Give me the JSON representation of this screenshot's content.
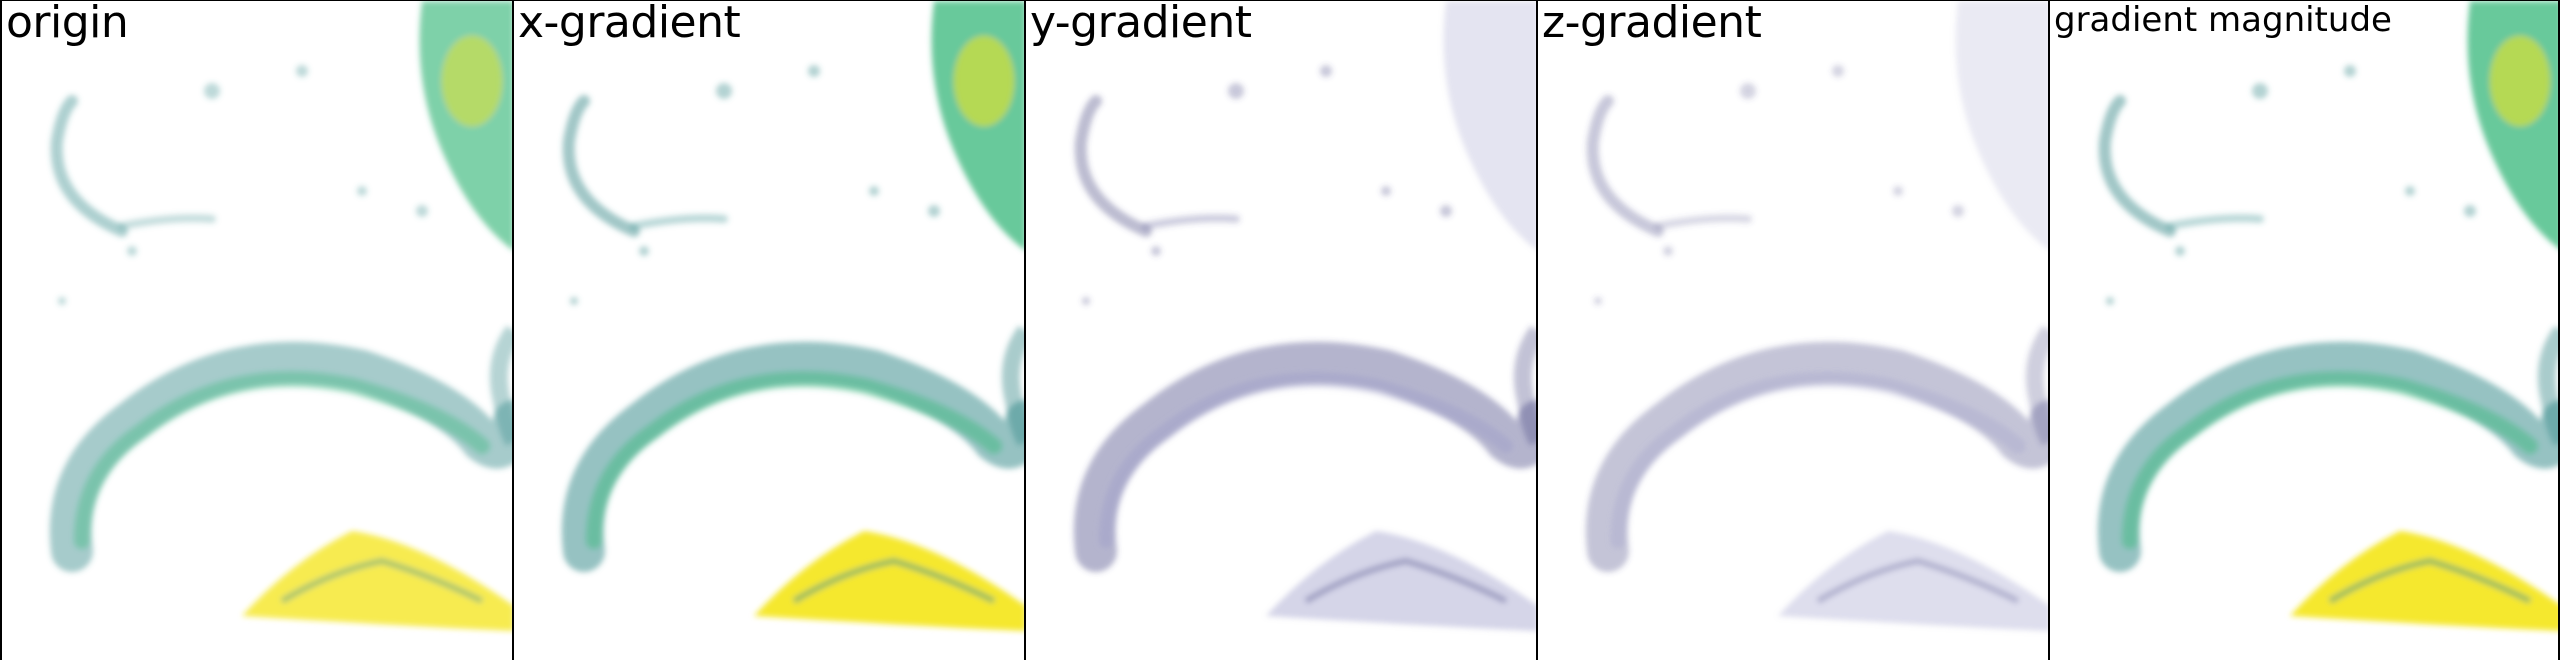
{
  "panels": [
    {
      "label": "origin",
      "style": "viridis",
      "strength": 0.85
    },
    {
      "label": "x-gradient",
      "style": "viridis",
      "strength": 1.0
    },
    {
      "label": "y-gradient",
      "style": "purple",
      "strength": 0.75
    },
    {
      "label": "z-gradient",
      "style": "purple",
      "strength": 0.6
    },
    {
      "label": "gradient magnitude",
      "style": "viridis",
      "strength": 1.0
    }
  ],
  "colors": {
    "teal": "#3f8f8f",
    "green": "#35b779",
    "yellow": "#f4e51b",
    "purple": "#4a4a86",
    "lavender": "#9a9ac8",
    "border": "#000000",
    "background": "#ffffff"
  }
}
